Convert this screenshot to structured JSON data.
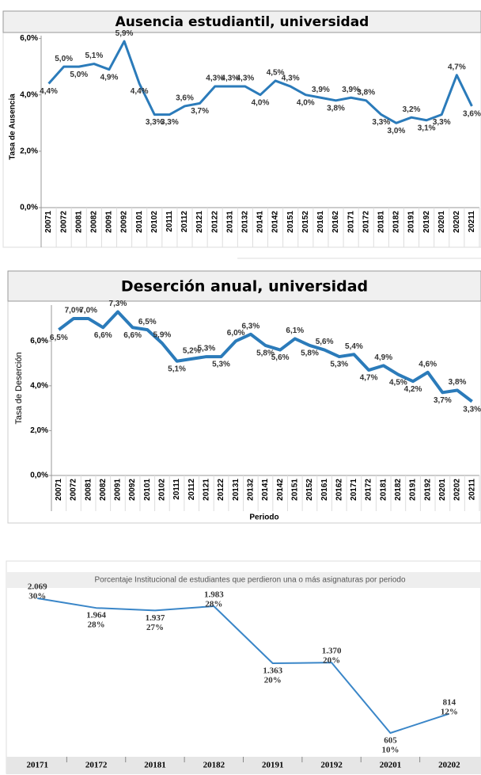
{
  "chart_data": [
    {
      "type": "line",
      "title": "Ausencia estudiantil, universidad",
      "y_label": "Tasa de Ausencia",
      "categories": [
        "20071",
        "20072",
        "20081",
        "20082",
        "20091",
        "20092",
        "20101",
        "20102",
        "20111",
        "20112",
        "20121",
        "20122",
        "20131",
        "20132",
        "20141",
        "20142",
        "20151",
        "20152",
        "20161",
        "20162",
        "20171",
        "20172",
        "20181",
        "20182",
        "20191",
        "20192",
        "20201",
        "20202",
        "20211"
      ],
      "values": [
        4.4,
        5.0,
        5.0,
        5.1,
        4.9,
        5.9,
        4.4,
        3.3,
        3.3,
        3.6,
        3.7,
        4.3,
        4.3,
        4.3,
        4.0,
        4.5,
        4.3,
        4.0,
        3.9,
        3.8,
        3.9,
        3.8,
        3.3,
        3.0,
        3.2,
        3.1,
        3.3,
        4.7,
        3.6
      ],
      "value_labels": [
        "4,4%",
        "5,0%",
        "5,0%",
        "5,1%",
        "4,9%",
        "5,9%",
        "4,4%",
        "3,3%",
        "3,3%",
        "3,6%",
        "3,7%",
        "4,3%",
        "4,3%",
        "4,3%",
        "4,0%",
        "4,5%",
        "4,3%",
        "4,0%",
        "3,9%",
        "3,8%",
        "3,9%",
        "3,8%",
        "3,3%",
        "3,0%",
        "3,2%",
        "3,1%",
        "3,3%",
        "4,7%",
        "3,6%"
      ],
      "color": "#2b7bba",
      "ylim": [
        0,
        6.1
      ],
      "yticks": [
        {
          "value": 0,
          "label": "0,0%"
        },
        {
          "value": 2,
          "label": "2,0%"
        },
        {
          "value": 4,
          "label": "4,0%"
        },
        {
          "value": 6,
          "label": "6,0%"
        }
      ]
    },
    {
      "type": "line",
      "title": "Deserción anual, universidad",
      "y_label": "Tasa de Deserción",
      "x_label": "Periodo",
      "categories": [
        "20071",
        "20072",
        "20081",
        "20082",
        "20091",
        "20092",
        "20101",
        "20102",
        "20111",
        "20112",
        "20121",
        "20122",
        "20131",
        "20132",
        "20141",
        "20142",
        "20151",
        "20152",
        "20161",
        "20162",
        "20171",
        "20172",
        "20181",
        "20182",
        "20191",
        "20192",
        "20201",
        "20202",
        "20211"
      ],
      "values": [
        6.5,
        7.0,
        7.0,
        6.6,
        7.3,
        6.6,
        6.5,
        5.9,
        5.1,
        5.2,
        5.3,
        5.3,
        6.0,
        6.3,
        5.8,
        5.6,
        6.1,
        5.8,
        5.6,
        5.3,
        5.4,
        4.7,
        4.9,
        4.5,
        4.2,
        4.6,
        3.7,
        3.8,
        3.3
      ],
      "value_labels": [
        "6,5%",
        "7,0%",
        "7,0%",
        "6,6%",
        "7,3%",
        "6,6%",
        "6,5%",
        "5,9%",
        "5,1%",
        "5,2%",
        "5,3%",
        "5,3%",
        "6,0%",
        "6,3%",
        "5,8%",
        "5,6%",
        "6,1%",
        "5,8%",
        "5,6%",
        "5,3%",
        "5,4%",
        "4,7%",
        "4,9%",
        "4,5%",
        "4,2%",
        "4,6%",
        "3,7%",
        "3,8%",
        "3,3%"
      ],
      "color": "#2b7bba",
      "ylim": [
        0,
        7.6
      ],
      "yticks": [
        {
          "value": 0,
          "label": "0,0%"
        },
        {
          "value": 2,
          "label": "2,0%"
        },
        {
          "value": 4,
          "label": "4,0%"
        },
        {
          "value": 6,
          "label": "6,0%"
        }
      ]
    },
    {
      "type": "line",
      "title": "Porcentaje Institucional de estudiantes que perdieron una o más asignaturas por periodo",
      "categories": [
        "20171",
        "20172",
        "20181",
        "20182",
        "20191",
        "20192",
        "20201",
        "20202"
      ],
      "values": [
        2069,
        1964,
        1937,
        1983,
        1363,
        1370,
        605,
        814
      ],
      "value_labels": [
        "2.069",
        "1.964",
        "1.937",
        "1.983",
        "1.363",
        "1.370",
        "605",
        "814"
      ],
      "share_labels": [
        "30%",
        "28%",
        "27%",
        "28%",
        "20%",
        "20%",
        "10%",
        "12%"
      ],
      "color": "#3a86c8"
    }
  ]
}
